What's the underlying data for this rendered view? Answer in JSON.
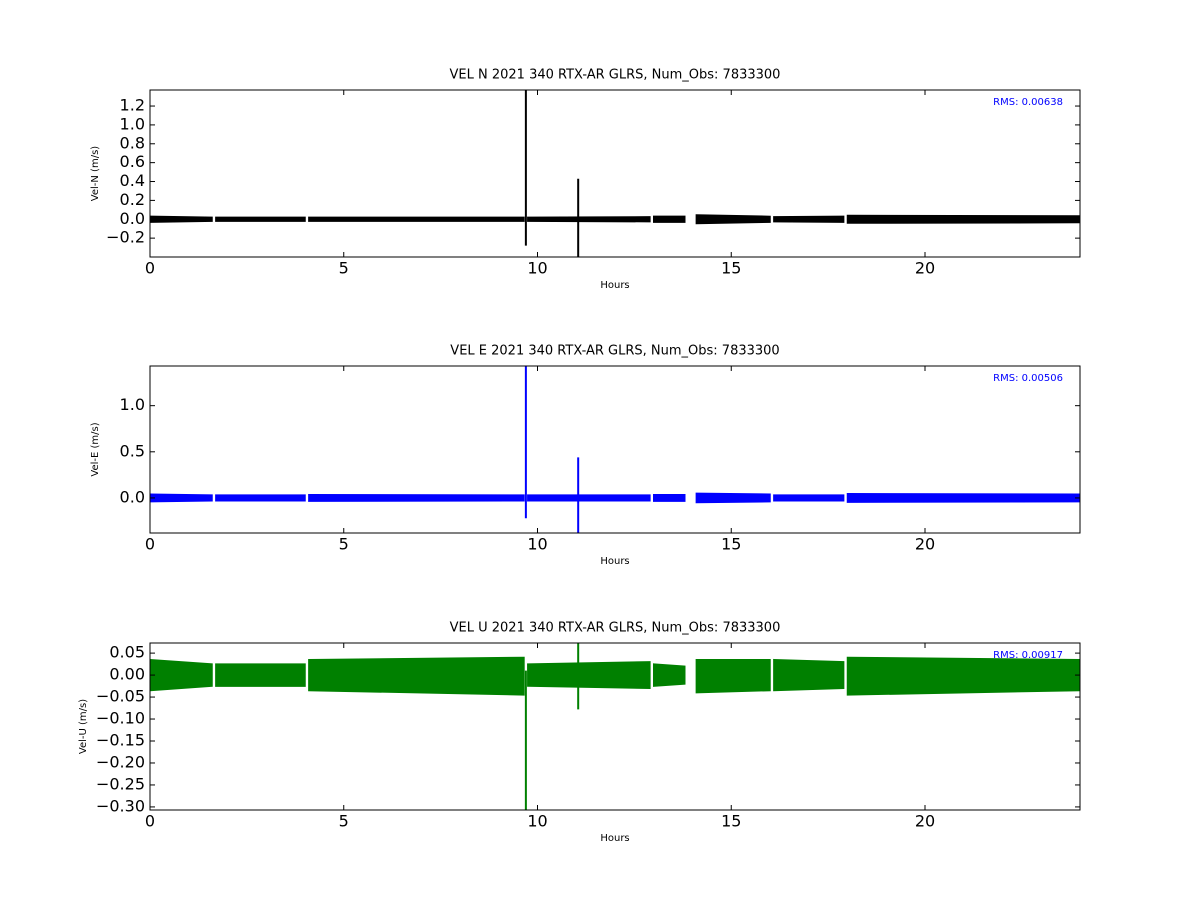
{
  "chart_data": [
    {
      "type": "band",
      "title": "VEL N 2021 340 RTX-AR  GLRS, Num_Obs: 7833300",
      "x_label": "Hours",
      "y_label": "Vel-N (m/s)",
      "annotation": "RMS:  0.00638",
      "color": "#000000",
      "xlim": [
        0,
        24
      ],
      "xticks": [
        0,
        5,
        10,
        15,
        20
      ],
      "ylim": [
        -0.4,
        1.37
      ],
      "yticks": [
        {
          "value": -0.2,
          "label": "−0.2"
        },
        {
          "value": 0,
          "label": "0.0"
        },
        {
          "value": 0.2,
          "label": "0.2"
        },
        {
          "value": 0.4,
          "label": "0.4"
        },
        {
          "value": 0.6,
          "label": "0.6"
        },
        {
          "value": 0.8,
          "label": "0.8"
        },
        {
          "value": 1,
          "label": "1.0"
        },
        {
          "value": 1.2,
          "label": "1.2"
        }
      ],
      "x": [
        0,
        1.6,
        1.65,
        1.7,
        4.0,
        4.05,
        4.1,
        9.65,
        9.7,
        9.75,
        12.9,
        12.95,
        13.0,
        13.8,
        13.95,
        14.1,
        16.0,
        16.05,
        16.1,
        17.9,
        17.95,
        18.0,
        24
      ],
      "upper": [
        0.03,
        0.02,
        null,
        0.02,
        0.02,
        null,
        0.02,
        0.02,
        null,
        0.02,
        0.025,
        null,
        0.03,
        0.03,
        null,
        0.045,
        0.03,
        null,
        0.025,
        0.03,
        null,
        0.04,
        0.035
      ],
      "lower": [
        -0.03,
        -0.02,
        null,
        -0.02,
        -0.02,
        null,
        -0.02,
        -0.02,
        null,
        -0.02,
        -0.025,
        null,
        -0.03,
        -0.03,
        null,
        -0.045,
        -0.03,
        null,
        -0.025,
        -0.03,
        null,
        -0.04,
        -0.035
      ],
      "spikes": {
        "x": [
          9.7,
          11.05
        ],
        "low": [
          -0.28,
          -0.4
        ],
        "high": [
          1.37,
          0.43
        ]
      }
    },
    {
      "type": "band",
      "title": "VEL E 2021 340 RTX-AR  GLRS, Num_Obs: 7833300",
      "x_label": "Hours",
      "y_label": "Vel-E (m/s)",
      "annotation": "RMS:  0.00506",
      "color": "#0000ff",
      "xlim": [
        0,
        24
      ],
      "xticks": [
        0,
        5,
        10,
        15,
        20
      ],
      "ylim": [
        -0.38,
        1.43
      ],
      "yticks": [
        {
          "value": 0,
          "label": "0.0"
        },
        {
          "value": 0.5,
          "label": "0.5"
        },
        {
          "value": 1,
          "label": "1.0"
        }
      ],
      "x": [
        0,
        1.6,
        1.65,
        1.7,
        4.0,
        4.05,
        4.1,
        9.65,
        9.7,
        9.75,
        12.9,
        12.95,
        13.0,
        13.8,
        13.95,
        14.1,
        16.0,
        16.05,
        16.1,
        17.9,
        17.95,
        18.0,
        24
      ],
      "upper": [
        0.04,
        0.03,
        null,
        0.03,
        0.03,
        null,
        0.035,
        0.03,
        null,
        0.03,
        0.03,
        null,
        0.035,
        0.035,
        null,
        0.05,
        0.04,
        null,
        0.03,
        0.03,
        null,
        0.045,
        0.04
      ],
      "lower": [
        -0.04,
        -0.03,
        null,
        -0.03,
        -0.03,
        null,
        -0.035,
        -0.03,
        null,
        -0.03,
        -0.03,
        null,
        -0.035,
        -0.035,
        null,
        -0.05,
        -0.04,
        null,
        -0.03,
        -0.03,
        null,
        -0.045,
        -0.04
      ],
      "spikes": {
        "x": [
          9.7,
          11.05
        ],
        "low": [
          -0.22,
          -0.38
        ],
        "high": [
          1.43,
          0.44
        ]
      }
    },
    {
      "type": "band",
      "title": "VEL U 2021 340 RTX-AR  GLRS, Num_Obs: 7833300",
      "x_label": "Hours",
      "y_label": "Vel-U (m/s)",
      "annotation": "RMS:  0.00917",
      "color": "#008000",
      "xlim": [
        0,
        24
      ],
      "xticks": [
        0,
        5,
        10,
        15,
        20
      ],
      "ylim": [
        -0.307,
        0.073
      ],
      "yticks": [
        {
          "value": -0.3,
          "label": "−0.30"
        },
        {
          "value": -0.25,
          "label": "−0.25"
        },
        {
          "value": -0.2,
          "label": "−0.20"
        },
        {
          "value": -0.15,
          "label": "−0.15"
        },
        {
          "value": -0.1,
          "label": "−0.10"
        },
        {
          "value": -0.05,
          "label": "−0.05"
        },
        {
          "value": 0,
          "label": "0.00"
        },
        {
          "value": 0.05,
          "label": "0.05"
        }
      ],
      "x": [
        0,
        1.6,
        1.65,
        1.7,
        4.0,
        4.05,
        4.1,
        9.65,
        9.7,
        9.75,
        12.9,
        12.95,
        13.0,
        13.8,
        13.95,
        14.1,
        16.0,
        16.05,
        16.1,
        17.9,
        17.95,
        18.0,
        24
      ],
      "upper": [
        0.035,
        0.025,
        null,
        0.025,
        0.025,
        null,
        0.035,
        0.04,
        null,
        0.025,
        0.03,
        null,
        0.025,
        0.02,
        null,
        0.035,
        0.035,
        null,
        0.035,
        0.03,
        null,
        0.04,
        0.035
      ],
      "lower": [
        -0.035,
        -0.025,
        null,
        -0.025,
        -0.025,
        null,
        -0.035,
        -0.045,
        null,
        -0.025,
        -0.03,
        null,
        -0.025,
        -0.02,
        null,
        -0.04,
        -0.035,
        null,
        -0.035,
        -0.03,
        null,
        -0.045,
        -0.035
      ],
      "spikes": {
        "x": [
          9.7,
          11.05
        ],
        "low": [
          -0.307,
          -0.078
        ],
        "high": [
          0.01,
          0.073
        ]
      }
    }
  ]
}
